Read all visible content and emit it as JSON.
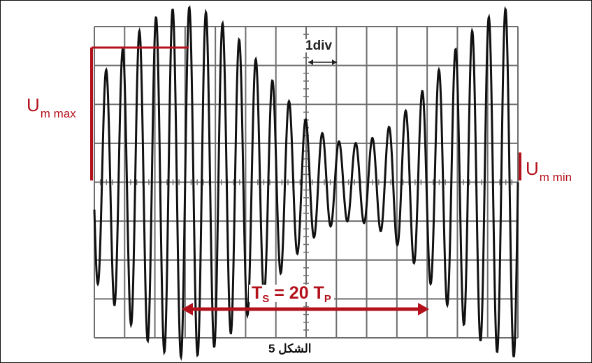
{
  "figure": {
    "caption": "الشكل 5",
    "grid": {
      "x_divisions": 14,
      "y_divisions": 8
    }
  },
  "labels": {
    "umax": {
      "main": "U",
      "sub": "m max"
    },
    "umin": {
      "main": "U",
      "sub": "m min"
    },
    "division": "1div",
    "period": {
      "ts_main": "T",
      "ts_sub": "S",
      "mid": " = 20 ",
      "tp_main": "T",
      "tp_sub": "P"
    }
  },
  "colors": {
    "annotation": "#b3121c",
    "trace": "#111111",
    "grid": "#6e6e6e"
  },
  "signal": {
    "type": "amplitude-modulated sine",
    "envelope_max_div": 4.5,
    "envelope_min_div": 1.0,
    "envelope_period_div": 11,
    "carrier_cycles_per_envelope_period": 20,
    "start_phase_div": 3
  }
}
